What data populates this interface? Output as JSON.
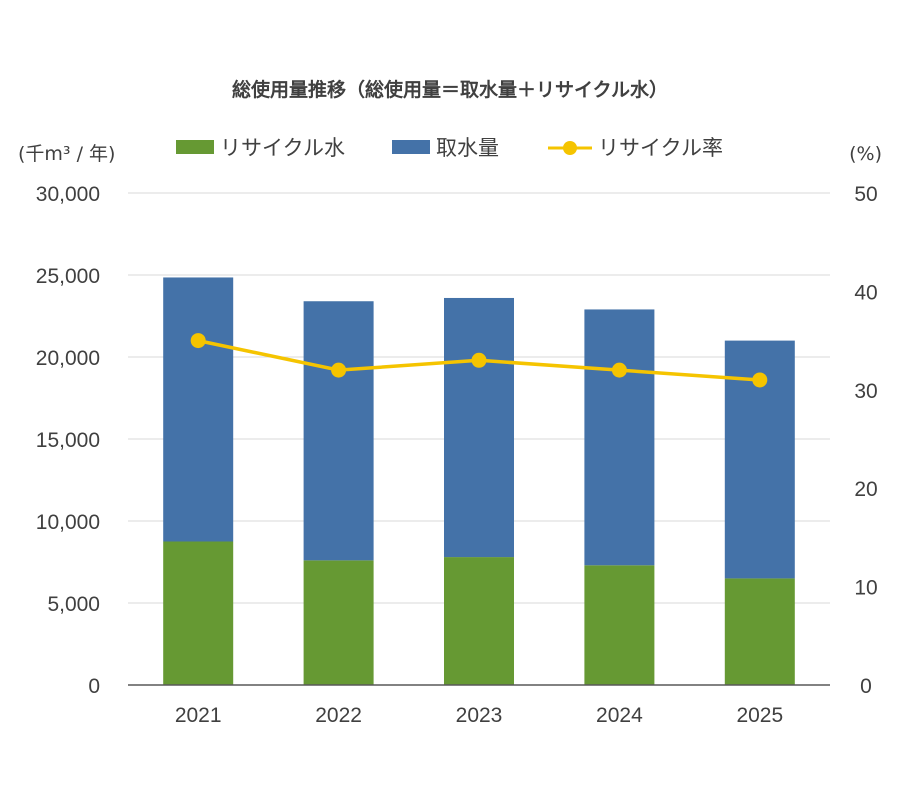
{
  "chart_data": {
    "type": "bar",
    "stacked": true,
    "title": "総使用量推移（総使用量＝取水量＋リサイクル水）",
    "unit_left": "(千m³ / 年)",
    "unit_right": "(%)",
    "categories": [
      "2021",
      "2022",
      "2023",
      "2024",
      "2025"
    ],
    "series": [
      {
        "name": "リサイクル水",
        "type": "bar",
        "axis": "left",
        "color": "#669933",
        "values": [
          8750,
          7600,
          7800,
          7300,
          6500
        ]
      },
      {
        "name": "取水量",
        "type": "bar",
        "axis": "left",
        "color": "#4472a8",
        "values": [
          16100,
          15800,
          15800,
          15600,
          14500
        ]
      },
      {
        "name": "リサイクル率",
        "type": "line",
        "axis": "right",
        "color": "#f5c400",
        "values": [
          35,
          32,
          33,
          32,
          31
        ]
      }
    ],
    "ylim_left": [
      0,
      30000
    ],
    "yticks_left": [
      "0",
      "5,000",
      "10,000",
      "15,000",
      "20,000",
      "25,000",
      "30,000"
    ],
    "ylim_right": [
      0,
      50
    ],
    "yticks_right": [
      "0",
      "10",
      "20",
      "30",
      "40",
      "50"
    ],
    "grid": true,
    "legend_position": "top"
  }
}
